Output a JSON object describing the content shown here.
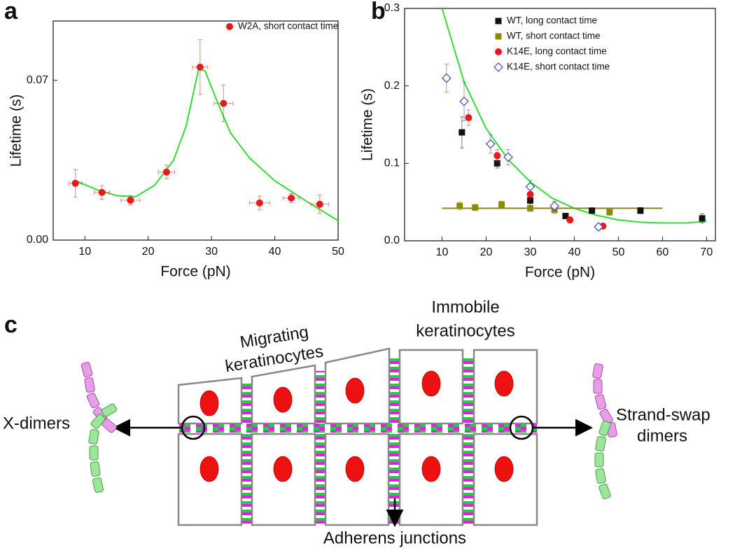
{
  "panel_labels": [
    "a",
    "b",
    "c"
  ],
  "chart_data": [
    {
      "type": "scatter",
      "xlabel": "Force (pN)",
      "ylabel": "Lifetime (s)",
      "xlim": [
        5,
        50
      ],
      "ylim": [
        0,
        0.096
      ],
      "xticks": [
        10,
        20,
        30,
        40,
        50
      ],
      "yticks": [
        {
          "value": 0,
          "label": "0.00"
        },
        0.07
      ],
      "legend": "upper right",
      "series": [
        {
          "name": "W2A, short contact time",
          "color": "#e8191b",
          "marker": "circle",
          "x": [
            8.5,
            12.7,
            17.2,
            22.9,
            28.2,
            31.9,
            37.6,
            42.6,
            47.1
          ],
          "values": [
            0.0249,
            0.0209,
            0.0175,
            0.0298,
            0.0758,
            0.0599,
            0.0163,
            0.0184,
            0.0157
          ],
          "xerr": [
            1.0,
            1.2,
            1.5,
            1.3,
            1.2,
            1.5,
            1.6,
            1.3,
            1.4
          ],
          "yerr": [
            0.006,
            0.003,
            0.002,
            0.003,
            0.012,
            0.008,
            0.003,
            0.002,
            0.004
          ]
        }
      ],
      "fits": [
        {
          "color": "#33dd33",
          "x": [
            8.5,
            12,
            15,
            18,
            21,
            24,
            26,
            28,
            29,
            31,
            33,
            36,
            40,
            45,
            50
          ],
          "values": [
            0.026,
            0.022,
            0.0195,
            0.019,
            0.024,
            0.035,
            0.05,
            0.0755,
            0.074,
            0.06,
            0.047,
            0.036,
            0.026,
            0.017,
            0.0085
          ]
        }
      ]
    },
    {
      "type": "scatter",
      "xlabel": "Force (pN)",
      "ylabel": "Lifetime (s)",
      "xlim": [
        1.5,
        72
      ],
      "ylim": [
        0,
        0.3
      ],
      "xticks": [
        10,
        20,
        30,
        40,
        50,
        60,
        70
      ],
      "yticks": [
        {
          "value": 0,
          "label": "0.0"
        },
        0.1,
        0.2,
        0.3
      ],
      "legend": "upper right",
      "series": [
        {
          "name": "WT, long contact time",
          "color": "#111111",
          "marker": "square",
          "x": [
            14.5,
            22.5,
            30,
            38,
            44,
            55,
            69
          ],
          "values": [
            0.14,
            0.1,
            0.052,
            0.032,
            0.039,
            0.039,
            0.029
          ],
          "yerr": [
            0.02,
            0.006,
            0.006,
            0.003,
            0.003,
            0.004,
            0.006
          ]
        },
        {
          "name": "WT, short contact time",
          "color": "#8a8a10",
          "marker": "square",
          "x": [
            14,
            17.5,
            23.5,
            30,
            35.5,
            48
          ],
          "values": [
            0.045,
            0.043,
            0.047,
            0.042,
            0.04,
            0.037
          ],
          "yerr": [
            0.005,
            0.004,
            0.004,
            0.004,
            0.005,
            0.004
          ]
        },
        {
          "name": "K14E, long contact time",
          "color": "#e8191b",
          "marker": "circle",
          "x": [
            16,
            22.5,
            30,
            39,
            46.5
          ],
          "values": [
            0.159,
            0.11,
            0.06,
            0.027,
            0.019
          ],
          "yerr": [
            0.01,
            0.008,
            0.006,
            0.004,
            0.003
          ]
        },
        {
          "name": "K14E, short contact time",
          "color": "#4a45b0",
          "marker": "diamond",
          "x": [
            11,
            15,
            21,
            25,
            30,
            35.5,
            45.5
          ],
          "values": [
            0.21,
            0.18,
            0.125,
            0.108,
            0.07,
            0.045,
            0.018
          ],
          "yerr": [
            0.018,
            0.025,
            0.012,
            0.01,
            0.008,
            0.006,
            0.004
          ]
        }
      ],
      "fits": [
        {
          "color": "#33dd33",
          "x": [
            10,
            15,
            20,
            25,
            30,
            35,
            40,
            45,
            50,
            55,
            60,
            65,
            70
          ],
          "values": [
            0.3,
            0.205,
            0.145,
            0.105,
            0.076,
            0.055,
            0.042,
            0.033,
            0.027,
            0.024,
            0.023,
            0.023,
            0.025
          ]
        },
        {
          "color": "#8a8a10",
          "x": [
            10,
            60
          ],
          "values": [
            0.042,
            0.042
          ]
        }
      ]
    }
  ],
  "diagram": {
    "migrating": [
      "Migrating",
      "keratinocytes"
    ],
    "immobile": [
      "Immobile",
      "keratinocytes"
    ],
    "x_dimers": "X-dimers",
    "strand_swap": [
      "Strand-swap",
      "dimers"
    ],
    "adherens": "Adherens junctions"
  }
}
